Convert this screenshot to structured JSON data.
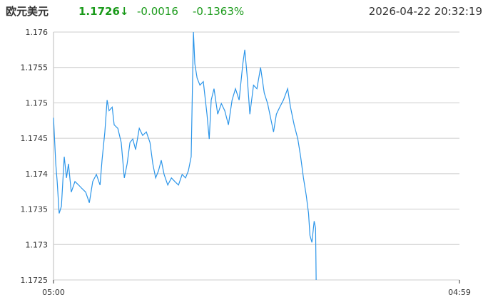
{
  "header": {
    "name": "欧元美元",
    "price": "1.1726↓",
    "change": "-0.0016",
    "change_pct": "-0.1363%",
    "datetime": "2026-04-22 20:32:19"
  },
  "chart_data": {
    "type": "line",
    "x": [
      0,
      8,
      13,
      20,
      28,
      38,
      46,
      53,
      63,
      76,
      89,
      101,
      114,
      127,
      139,
      152,
      165,
      172,
      182,
      190,
      197,
      208,
      215,
      228,
      240,
      251,
      261,
      271,
      281,
      291,
      304,
      316,
      329,
      342,
      352,
      362,
      372,
      382,
      392,
      405,
      418,
      430,
      443,
      456,
      468,
      478,
      488,
      496,
      501,
      509,
      519,
      531,
      544,
      552,
      559,
      569,
      582,
      595,
      607,
      620,
      633,
      645,
      658,
      671,
      678,
      686,
      696,
      709,
      721,
      734,
      747,
      759,
      772,
      780,
      790,
      802,
      815,
      830,
      840,
      853,
      866,
      876,
      886,
      896,
      904,
      909,
      916,
      924,
      929,
      931
    ],
    "series": [
      {
        "color": "#2b95e9",
        "values": [
          1.17479,
          1.17414,
          1.17389,
          1.17344,
          1.17354,
          1.17424,
          1.17394,
          1.17414,
          1.17374,
          1.17389,
          1.17384,
          1.17379,
          1.17374,
          1.17359,
          1.17389,
          1.17399,
          1.17384,
          1.17419,
          1.17459,
          1.17504,
          1.17489,
          1.17494,
          1.17469,
          1.17464,
          1.17444,
          1.17394,
          1.17414,
          1.17444,
          1.17449,
          1.17434,
          1.17464,
          1.17454,
          1.17459,
          1.17444,
          1.17414,
          1.17394,
          1.17404,
          1.17419,
          1.17399,
          1.17384,
          1.17394,
          1.17389,
          1.17384,
          1.17399,
          1.17394,
          1.17404,
          1.17424,
          1.176,
          1.17555,
          1.17535,
          1.17525,
          1.1753,
          1.17484,
          1.17449,
          1.17504,
          1.1752,
          1.17484,
          1.17499,
          1.17489,
          1.17469,
          1.17504,
          1.1752,
          1.17504,
          1.17555,
          1.17575,
          1.1754,
          1.17484,
          1.17525,
          1.1752,
          1.1755,
          1.17514,
          1.17499,
          1.17474,
          1.17459,
          1.17484,
          1.17494,
          1.17504,
          1.1752,
          1.17494,
          1.17469,
          1.17449,
          1.17424,
          1.17394,
          1.17369,
          1.17344,
          1.17313,
          1.17303,
          1.17333,
          1.17323,
          1.1725
        ]
      }
    ],
    "xlim": [
      0,
      1439
    ],
    "xticks": [
      {
        "value": 0,
        "label": "05:00"
      },
      {
        "value": 1439,
        "label": "04:59"
      }
    ],
    "ylim": [
      1.1725,
      1.176
    ],
    "yticks": [
      1.1725,
      1.173,
      1.1735,
      1.174,
      1.1745,
      1.175,
      1.1755,
      1.176
    ],
    "grid": true
  }
}
